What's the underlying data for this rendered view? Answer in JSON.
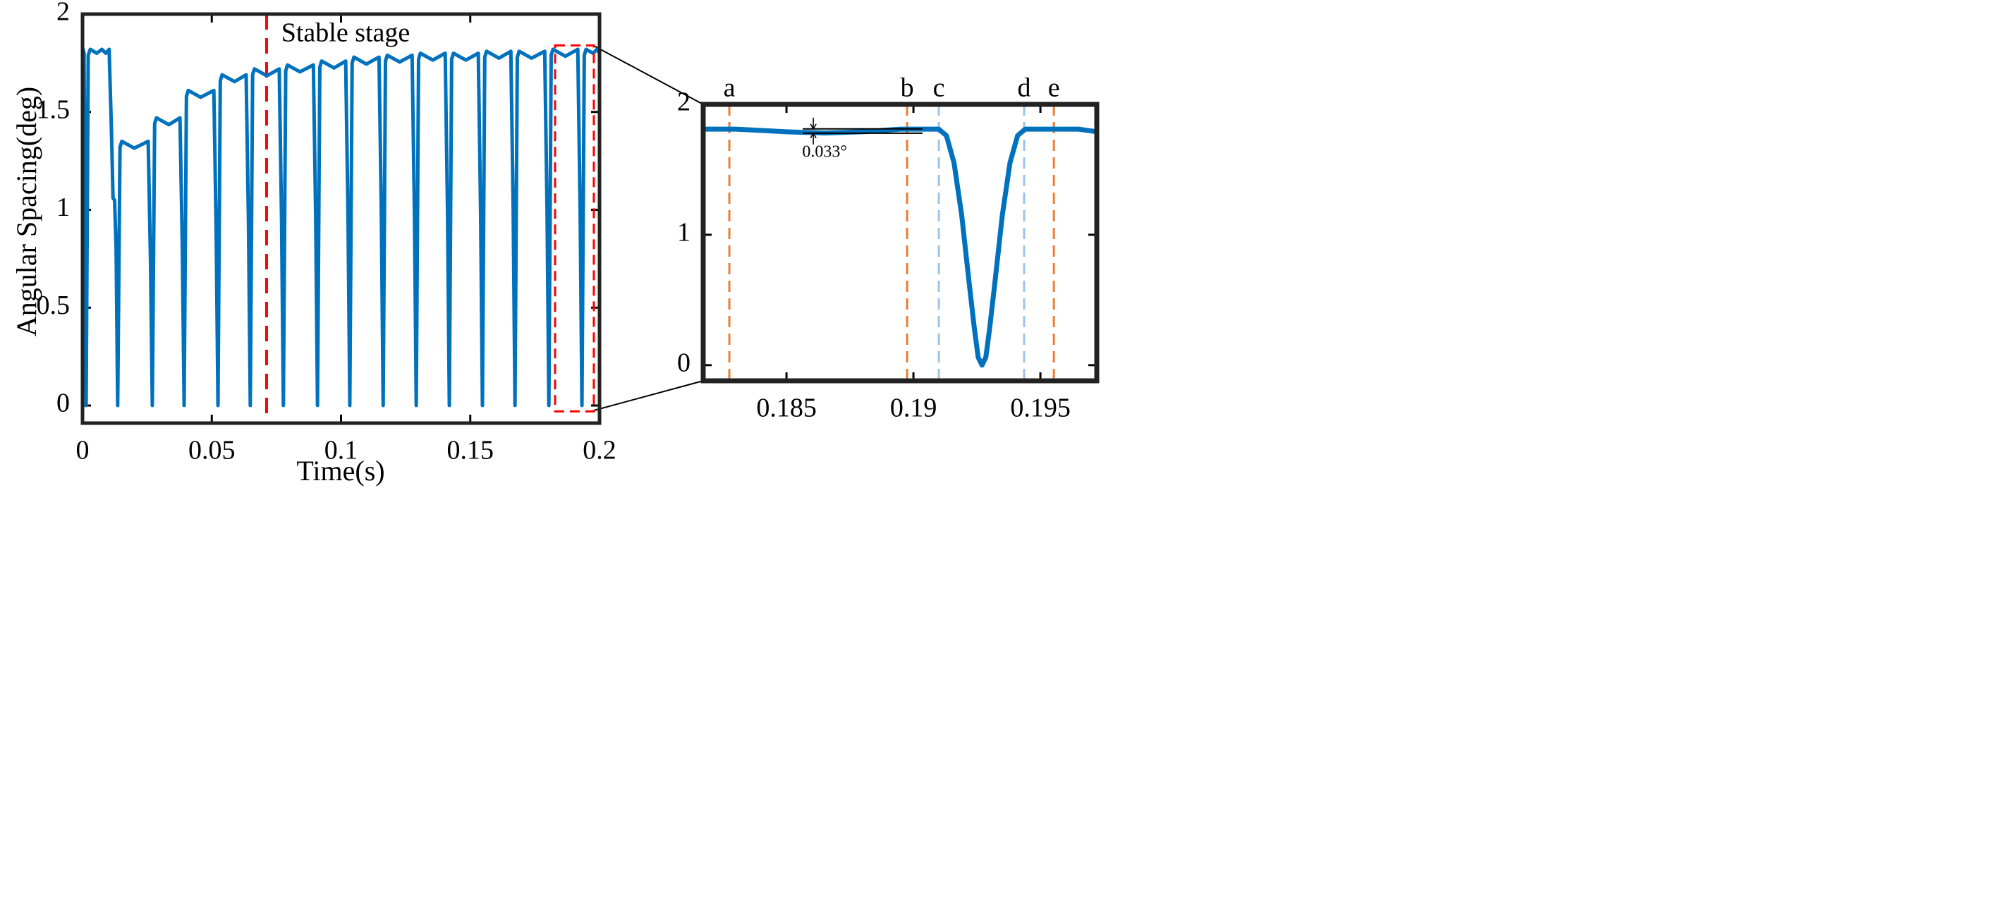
{
  "chart_data": [
    {
      "type": "line",
      "xlabel": "Time(s)",
      "ylabel": "Angular Spacing(deg)",
      "xlim": [
        0,
        0.2
      ],
      "ylim": [
        -0.09,
        2
      ],
      "xticks": [
        0,
        0.05,
        0.1,
        0.15,
        0.2
      ],
      "yticks": [
        0,
        0.5,
        1,
        1.5,
        2
      ],
      "annotation": "Stable stage",
      "marker_line": {
        "x": 0.0712,
        "color": "#ff0000"
      },
      "zoom_box": {
        "xlim": [
          0.1828,
          0.1978
        ],
        "ylim": [
          -0.03,
          1.84
        ],
        "color": "#ff0000"
      },
      "x": [
        0,
        0.0006,
        0.0014,
        0.0022,
        0.003,
        0.0055,
        0.0075,
        0.009,
        0.0103,
        0.0112,
        0.0118,
        0.0124,
        0.013,
        0.0136,
        0.0145,
        0.0152,
        0.02,
        0.0254,
        0.0263,
        0.027,
        0.0279,
        0.0286,
        0.0334,
        0.0377,
        0.0386,
        0.0393,
        0.0402,
        0.0409,
        0.0457,
        0.0508,
        0.0517,
        0.0524,
        0.0533,
        0.054,
        0.0588,
        0.0633,
        0.0642,
        0.0649,
        0.0658,
        0.0665,
        0.0713,
        0.0761,
        0.077,
        0.0777,
        0.0786,
        0.0793,
        0.0841,
        0.0893,
        0.0902,
        0.0909,
        0.0918,
        0.0925,
        0.0973,
        0.1018,
        0.1027,
        0.1034,
        0.1043,
        0.105,
        0.1098,
        0.1147,
        0.1156,
        0.1163,
        0.1172,
        0.1179,
        0.1227,
        0.1275,
        0.1284,
        0.1291,
        0.13,
        0.1307,
        0.1355,
        0.1403,
        0.1412,
        0.1419,
        0.1428,
        0.1435,
        0.1483,
        0.1531,
        0.154,
        0.1547,
        0.1556,
        0.1563,
        0.1611,
        0.1657,
        0.1666,
        0.1673,
        0.1682,
        0.1689,
        0.1737,
        0.1788,
        0.1797,
        0.1804,
        0.1813,
        0.182,
        0.1868,
        0.1916,
        0.1925,
        0.1932,
        0.1941,
        0.1948,
        0.1975,
        0.199,
        0.2
      ],
      "series": [
        {
          "color": "#0072bd",
          "values": [
            1.83,
            1.8,
            0,
            1.79,
            1.82,
            1.8,
            1.82,
            1.8,
            1.82,
            1.4,
            1.06,
            1.05,
            0.8,
            0,
            1.32,
            1.35,
            1.315,
            1.35,
            0.74,
            0,
            1.44,
            1.47,
            1.435,
            1.47,
            0.81,
            0,
            1.58,
            1.61,
            1.575,
            1.61,
            0.89,
            0,
            1.66,
            1.69,
            1.655,
            1.69,
            0.93,
            0,
            1.69,
            1.72,
            1.685,
            1.72,
            0.95,
            0,
            1.71,
            1.74,
            1.705,
            1.74,
            0.96,
            0,
            1.73,
            1.76,
            1.725,
            1.76,
            0.97,
            0,
            1.75,
            1.78,
            1.745,
            1.78,
            0.98,
            0,
            1.76,
            1.79,
            1.755,
            1.79,
            0.98,
            0,
            1.77,
            1.8,
            1.765,
            1.8,
            0.99,
            0,
            1.77,
            1.8,
            1.765,
            1.8,
            0.99,
            0,
            1.78,
            1.81,
            1.775,
            1.81,
            1.0,
            0,
            1.78,
            1.81,
            1.775,
            1.81,
            1.0,
            0,
            1.79,
            1.82,
            1.785,
            1.82,
            1.0,
            0,
            1.79,
            1.82,
            1.8,
            1.82,
            1.8
          ]
        }
      ]
    },
    {
      "type": "line",
      "xlim": [
        0.18172,
        0.19722
      ],
      "ylim": [
        -0.12,
        2
      ],
      "xticks": [
        0.185,
        0.19,
        0.195
      ],
      "yticks": [
        0,
        1,
        2
      ],
      "vlines": [
        {
          "label": "a",
          "x": 0.18275,
          "color": "#ed7d31"
        },
        {
          "label": "b",
          "x": 0.18975,
          "color": "#ed7d31"
        },
        {
          "label": "c",
          "x": 0.191,
          "color": "#9dc3e6"
        },
        {
          "label": "d",
          "x": 0.19436,
          "color": "#9dc3e6"
        },
        {
          "label": "e",
          "x": 0.19553,
          "color": "#ed7d31"
        }
      ],
      "measure": {
        "label": "0.033°",
        "x": [
          0.18564,
          0.19036
        ],
        "y": [
          1.779,
          1.812
        ]
      },
      "x": [
        0.18172,
        0.183,
        0.185,
        0.1865,
        0.188,
        0.1895,
        0.191,
        0.1913,
        0.1916,
        0.1919,
        0.1922,
        0.1924,
        0.19255,
        0.1927,
        0.19285,
        0.193,
        0.1932,
        0.1935,
        0.1938,
        0.1941,
        0.1944,
        0.1955,
        0.1965,
        0.19722
      ],
      "series": [
        {
          "color": "#0072bd",
          "values": [
            1.81,
            1.81,
            1.79,
            1.78,
            1.79,
            1.81,
            1.81,
            1.76,
            1.55,
            1.15,
            0.62,
            0.28,
            0.06,
            0,
            0.06,
            0.28,
            0.62,
            1.15,
            1.55,
            1.76,
            1.81,
            1.81,
            1.81,
            1.79
          ]
        }
      ]
    }
  ]
}
